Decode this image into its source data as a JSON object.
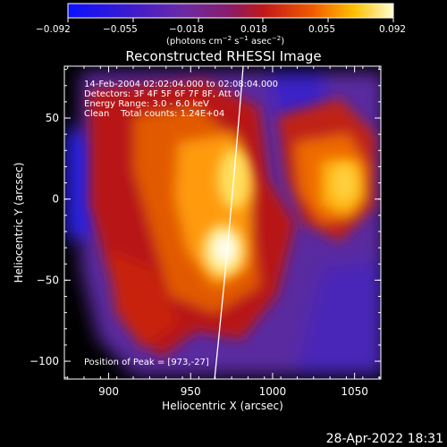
{
  "colorbar": {
    "ticks": [
      "−0.092",
      "−0.055",
      "−0.018",
      "0.018",
      "0.055",
      "0.092"
    ],
    "units_text": "(photons cm",
    "units_sup1": "−2",
    "units_mid1": " s",
    "units_sup2": "−1",
    "units_mid2": " asec",
    "units_sup3": "−2",
    "units_end": ")"
  },
  "title": "Reconstructed RHESSI Image",
  "annotations": {
    "time_range": "14-Feb-2004 02:02:04.000 to 02:08:04.000",
    "detectors": "Detectors: 3F 4F 5F 6F 7F 8F, Att 0",
    "energy": "Energy Range: 3.0 - 6.0 keV",
    "clean": "Clean    Total counts: 1.24E+04",
    "peak": "Position of Peak = [973,-27]"
  },
  "axes": {
    "xlabel": "Heliocentric X (arcsec)",
    "ylabel": "Heliocentric Y (arcsec)",
    "xticks": [
      "900",
      "950",
      "1000",
      "1050"
    ],
    "xtick_values": [
      900,
      950,
      1000,
      1050
    ],
    "yticks": [
      "50",
      "0",
      "−50",
      "−100"
    ],
    "ytick_values": [
      50,
      0,
      -50,
      -100
    ],
    "xlim": [
      873,
      1066
    ],
    "ylim": [
      -111,
      82
    ]
  },
  "footer": {
    "date": "28-Apr-2022 18:31"
  },
  "colors": {
    "background": "#000000",
    "low": "#1a10ff",
    "mid": "#5a2ab0",
    "high": "#ffffff"
  }
}
